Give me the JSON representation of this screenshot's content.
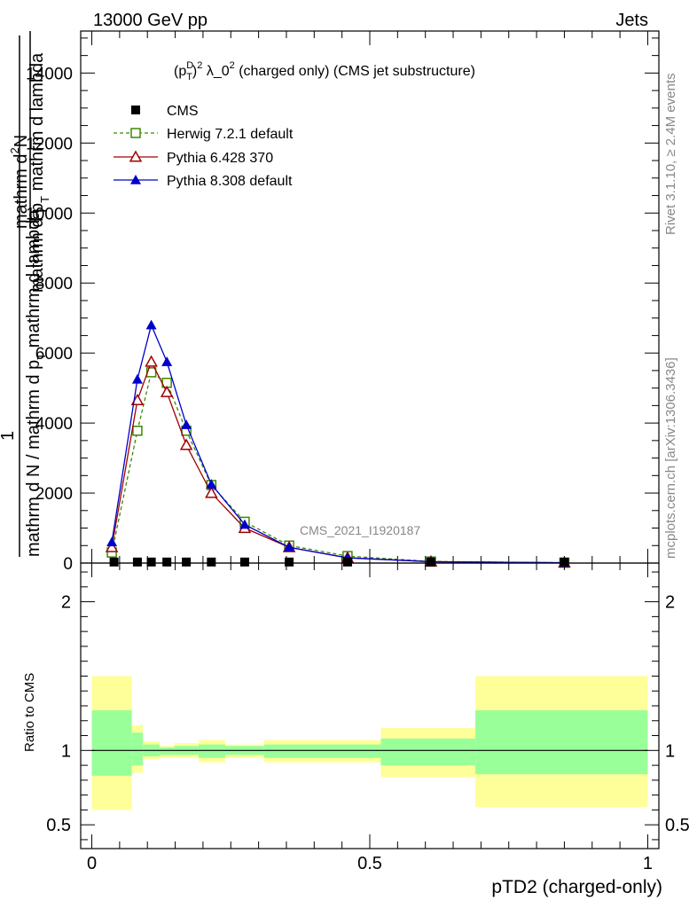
{
  "header": {
    "left": "13000 GeV pp",
    "right": "Jets"
  },
  "side_labels": {
    "rivet": "Rivet 3.1.10, ≥ 2.4M events",
    "mcplots": "mcplots.cern.ch [arXiv:1306.3436]"
  },
  "chart_data": [
    {
      "type": "line",
      "panel": "main",
      "title": "(p_T^D)^2 λ_0^2 (charged only) (CMS jet substructure)",
      "title_parts": {
        "p": "(p",
        "sub": "T",
        "sup": "D",
        "close": ")",
        "sup2": "2",
        "lambda": " λ_0",
        "sup3": "2",
        "rest": " (charged only) (CMS jet substructure)"
      },
      "ylabel": {
        "num1": "mathrm d",
        "num_sup": "2",
        "num2": "N",
        "den1": "mathrm d p",
        "den_sub": "T",
        "den2": " mathrm d lambda",
        "prefix": "1",
        "den_full": "mathrm d N / mathrm d p",
        "den_full_sub": "T",
        "den_full2": " mathrm d lambda"
      },
      "ylabel_text": {
        "top_numerator": "mathrm d",
        "top_sup": "2",
        "top_N": "N",
        "top_den": "mathrm d p",
        "top_den_sub": "T",
        "top_den2": " mathrm d lambda",
        "one": "1"
      },
      "watermark": "CMS_2021_I1920187",
      "xlim": [
        -0.02,
        1.02
      ],
      "ylim": [
        0,
        15200
      ],
      "yticks_major": [
        0,
        2000,
        4000,
        6000,
        8000,
        10000,
        12000,
        14000
      ],
      "ytick_labels": [
        "0",
        "2000",
        "4000",
        "6000",
        "8000",
        "10000",
        "12000",
        "14000"
      ],
      "legend_position": "top-left",
      "series": [
        {
          "name": "CMS",
          "color": "#000000",
          "marker": "square-filled",
          "x": [
            0.04,
            0.082,
            0.107,
            0.135,
            0.17,
            0.215,
            0.275,
            0.355,
            0.46,
            0.61,
            0.85
          ],
          "values": [
            30,
            30,
            30,
            30,
            30,
            30,
            30,
            30,
            30,
            30,
            30
          ]
        },
        {
          "name": "Herwig 7.2.1 default",
          "color": "#3a8a00",
          "marker": "square-open",
          "dash": "4,3",
          "x": [
            0.036,
            0.082,
            0.107,
            0.135,
            0.17,
            0.215,
            0.275,
            0.355,
            0.46,
            0.61,
            0.85
          ],
          "values": [
            300,
            3780,
            5450,
            5150,
            3780,
            2230,
            1180,
            500,
            200,
            45,
            10
          ]
        },
        {
          "name": "Pythia 6.428 370",
          "color": "#a00000",
          "marker": "triangle-open",
          "x": [
            0.036,
            0.082,
            0.107,
            0.135,
            0.17,
            0.215,
            0.275,
            0.355,
            0.46,
            0.61,
            0.85
          ],
          "values": [
            450,
            4650,
            5750,
            4880,
            3370,
            2000,
            1000,
            450,
            150,
            40,
            10
          ]
        },
        {
          "name": "Pythia 8.308 default",
          "color": "#0000cc",
          "marker": "triangle-filled",
          "x": [
            0.036,
            0.082,
            0.107,
            0.135,
            0.17,
            0.215,
            0.275,
            0.355,
            0.46,
            0.61,
            0.85
          ],
          "values": [
            600,
            5250,
            6800,
            5750,
            3950,
            2250,
            1100,
            450,
            150,
            40,
            10
          ]
        }
      ]
    },
    {
      "type": "area",
      "panel": "ratio",
      "ylabel": "Ratio to CMS",
      "xlabel": "pTD2 (charged-only)",
      "xlim": [
        -0.02,
        1.02
      ],
      "ylim": [
        0.34,
        2.26
      ],
      "yticks_major": [
        0.5,
        1,
        2
      ],
      "ytick_labels": [
        "0.5",
        "1",
        "2"
      ],
      "xticks_major": [
        0,
        0.5,
        1
      ],
      "xtick_labels": [
        "0",
        "0.5",
        "1"
      ],
      "reference_line": 1,
      "band_colors": {
        "outer": "#ffff99",
        "inner": "#99ff99"
      },
      "bins": [
        {
          "lo": 0.0,
          "hi": 0.072,
          "outer": [
            0.6,
            1.5
          ],
          "inner": [
            0.83,
            1.27
          ]
        },
        {
          "lo": 0.072,
          "hi": 0.092,
          "outer": [
            0.85,
            1.17
          ],
          "inner": [
            0.9,
            1.12
          ]
        },
        {
          "lo": 0.092,
          "hi": 0.122,
          "outer": [
            0.94,
            1.06
          ],
          "inner": [
            0.96,
            1.04
          ]
        },
        {
          "lo": 0.122,
          "hi": 0.148,
          "outer": [
            0.95,
            1.03
          ],
          "inner": [
            0.97,
            1.02
          ]
        },
        {
          "lo": 0.148,
          "hi": 0.192,
          "outer": [
            0.95,
            1.05
          ],
          "inner": [
            0.97,
            1.03
          ]
        },
        {
          "lo": 0.192,
          "hi": 0.24,
          "outer": [
            0.92,
            1.07
          ],
          "inner": [
            0.95,
            1.04
          ]
        },
        {
          "lo": 0.24,
          "hi": 0.31,
          "outer": [
            0.95,
            1.04
          ],
          "inner": [
            0.97,
            1.03
          ]
        },
        {
          "lo": 0.31,
          "hi": 0.52,
          "outer": [
            0.92,
            1.07
          ],
          "inner": [
            0.95,
            1.04
          ]
        },
        {
          "lo": 0.52,
          "hi": 0.69,
          "outer": [
            0.82,
            1.15
          ],
          "inner": [
            0.9,
            1.08
          ]
        },
        {
          "lo": 0.69,
          "hi": 1.0,
          "outer": [
            0.62,
            1.5
          ],
          "inner": [
            0.84,
            1.27
          ]
        }
      ]
    }
  ]
}
